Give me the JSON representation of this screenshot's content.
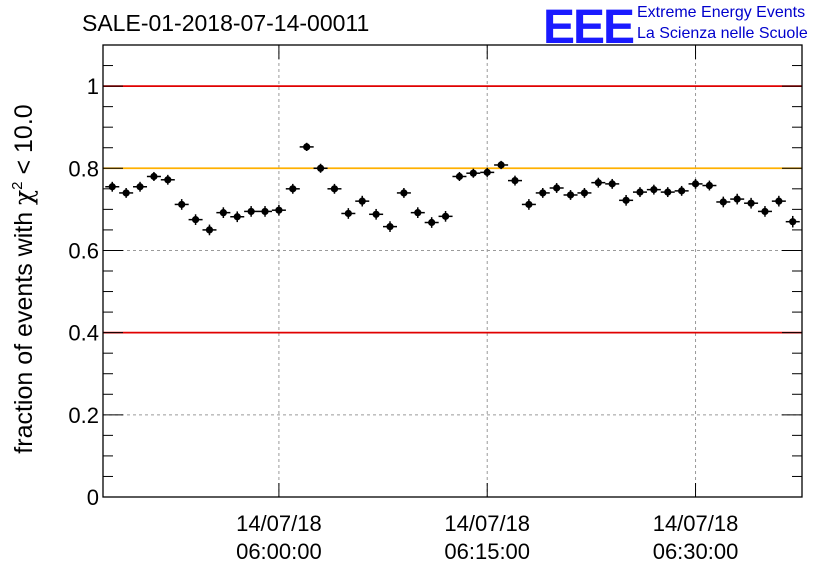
{
  "header": {
    "title": "SALE-01-2018-07-14-00011",
    "logo_text": "EEE",
    "tagline_1": "Extreme Energy Events",
    "tagline_2": "La Scienza nelle Scuole"
  },
  "colors": {
    "red_line": "#e00000",
    "orange_line": "#ffb000",
    "marker": "#000000",
    "grid": "#9a9a9a",
    "logo": "#1a1aff"
  },
  "chart_data": {
    "type": "scatter",
    "title": "SALE-01-2018-07-14-00011",
    "ylabel_prefix": "fraction of events with ",
    "ylabel_symbol": "χ",
    "ylabel_superscript": "2",
    "ylabel_suffix": " < 10.0",
    "xlim": [
      "05:47:20",
      "06:37:40"
    ],
    "ylim": [
      0,
      1.1
    ],
    "y_ticks": [
      "0",
      "0.2",
      "0.4",
      "0.6",
      "0.8",
      "1"
    ],
    "y_tick_values": [
      0,
      0.2,
      0.4,
      0.6,
      0.8,
      1.0
    ],
    "x_ticks": [
      {
        "time": "06:00:00",
        "date_label": "14/07/18",
        "time_label": "06:00:00"
      },
      {
        "time": "06:15:00",
        "date_label": "14/07/18",
        "time_label": "06:15:00"
      },
      {
        "time": "06:30:00",
        "date_label": "14/07/18",
        "time_label": "06:30:00"
      }
    ],
    "grid": true,
    "reference_lines": [
      {
        "y": 1.0,
        "color": "#e00000"
      },
      {
        "y": 0.8,
        "color": "#ffb000"
      },
      {
        "y": 0.4,
        "color": "#e00000"
      }
    ],
    "points": [
      {
        "x": "05:48:00",
        "y": 0.755
      },
      {
        "x": "05:49:00",
        "y": 0.74
      },
      {
        "x": "05:50:00",
        "y": 0.755
      },
      {
        "x": "05:51:00",
        "y": 0.78
      },
      {
        "x": "05:52:00",
        "y": 0.772
      },
      {
        "x": "05:53:00",
        "y": 0.712
      },
      {
        "x": "05:54:00",
        "y": 0.675
      },
      {
        "x": "05:55:00",
        "y": 0.65
      },
      {
        "x": "05:56:00",
        "y": 0.692
      },
      {
        "x": "05:57:00",
        "y": 0.682
      },
      {
        "x": "05:58:00",
        "y": 0.695
      },
      {
        "x": "05:59:00",
        "y": 0.695
      },
      {
        "x": "06:00:00",
        "y": 0.698
      },
      {
        "x": "06:01:00",
        "y": 0.75
      },
      {
        "x": "06:02:00",
        "y": 0.852
      },
      {
        "x": "06:03:00",
        "y": 0.8
      },
      {
        "x": "06:04:00",
        "y": 0.75
      },
      {
        "x": "06:05:00",
        "y": 0.69
      },
      {
        "x": "06:06:00",
        "y": 0.72
      },
      {
        "x": "06:07:00",
        "y": 0.688
      },
      {
        "x": "06:08:00",
        "y": 0.658
      },
      {
        "x": "06:09:00",
        "y": 0.74
      },
      {
        "x": "06:10:00",
        "y": 0.692
      },
      {
        "x": "06:11:00",
        "y": 0.668
      },
      {
        "x": "06:12:00",
        "y": 0.683
      },
      {
        "x": "06:13:00",
        "y": 0.78
      },
      {
        "x": "06:14:00",
        "y": 0.788
      },
      {
        "x": "06:15:00",
        "y": 0.79
      },
      {
        "x": "06:16:00",
        "y": 0.808
      },
      {
        "x": "06:17:00",
        "y": 0.77
      },
      {
        "x": "06:18:00",
        "y": 0.712
      },
      {
        "x": "06:19:00",
        "y": 0.74
      },
      {
        "x": "06:20:00",
        "y": 0.752
      },
      {
        "x": "06:21:00",
        "y": 0.735
      },
      {
        "x": "06:22:00",
        "y": 0.74
      },
      {
        "x": "06:23:00",
        "y": 0.765
      },
      {
        "x": "06:24:00",
        "y": 0.762
      },
      {
        "x": "06:25:00",
        "y": 0.722
      },
      {
        "x": "06:26:00",
        "y": 0.742
      },
      {
        "x": "06:27:00",
        "y": 0.748
      },
      {
        "x": "06:28:00",
        "y": 0.742
      },
      {
        "x": "06:29:00",
        "y": 0.745
      },
      {
        "x": "06:30:00",
        "y": 0.762
      },
      {
        "x": "06:31:00",
        "y": 0.758
      },
      {
        "x": "06:32:00",
        "y": 0.718
      },
      {
        "x": "06:33:00",
        "y": 0.725
      },
      {
        "x": "06:34:00",
        "y": 0.715
      },
      {
        "x": "06:35:00",
        "y": 0.695
      },
      {
        "x": "06:36:00",
        "y": 0.72
      },
      {
        "x": "06:37:00",
        "y": 0.67
      }
    ],
    "y_error": [
      0.012,
      0.012,
      0.012,
      0.011,
      0.012,
      0.013,
      0.013,
      0.013,
      0.013,
      0.013,
      0.013,
      0.013,
      0.013,
      0.012,
      0.01,
      0.011,
      0.012,
      0.013,
      0.013,
      0.013,
      0.013,
      0.012,
      0.013,
      0.013,
      0.013,
      0.011,
      0.011,
      0.011,
      0.01,
      0.012,
      0.013,
      0.012,
      0.012,
      0.012,
      0.012,
      0.012,
      0.012,
      0.013,
      0.012,
      0.012,
      0.012,
      0.012,
      0.012,
      0.012,
      0.013,
      0.013,
      0.013,
      0.013,
      0.013,
      0.014
    ]
  }
}
